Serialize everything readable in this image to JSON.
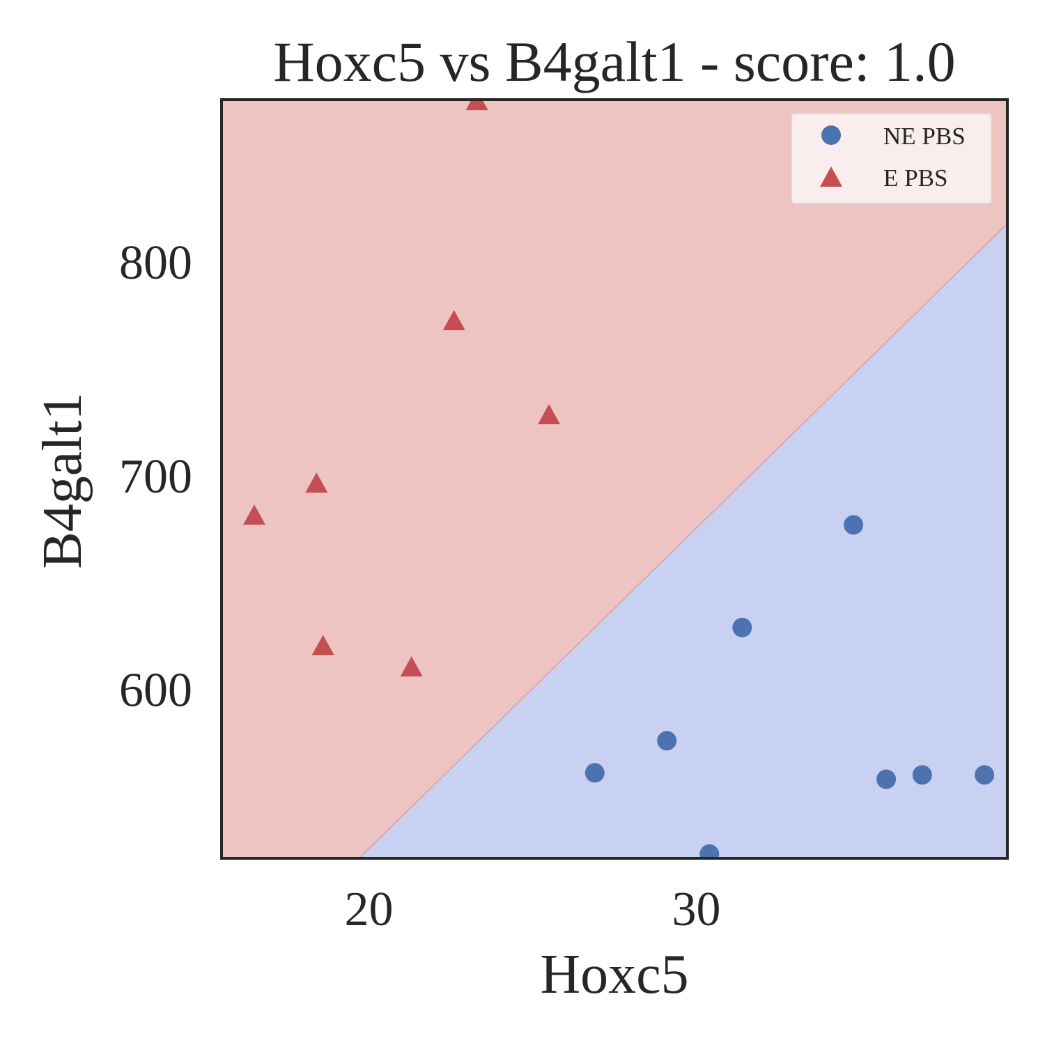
{
  "chart_data": {
    "type": "scatter",
    "title": "Hoxc5 vs B4galt1 - score: 1.0",
    "xlabel": "Hoxc5",
    "ylabel": "B4galt1",
    "xlim": [
      15.5,
      39.5
    ],
    "ylim": [
      521,
      876
    ],
    "xticks": [
      20,
      30
    ],
    "yticks": [
      600,
      700,
      800
    ],
    "grid": false,
    "legend": {
      "position": "upper right"
    },
    "decision_regions": {
      "boundary": [
        [
          19.7,
          521
        ],
        [
          39.5,
          818
        ]
      ],
      "upper_color": "#eec4c3",
      "lower_color": "#c9d1f3",
      "upper_class": "E PBS",
      "lower_class": "NE PBS"
    },
    "series": [
      {
        "name": "NE PBS",
        "marker": "circle",
        "color": "#4c72b0",
        "points": [
          [
            26.9,
            561
          ],
          [
            29.1,
            576
          ],
          [
            30.4,
            523
          ],
          [
            31.4,
            629
          ],
          [
            34.8,
            677
          ],
          [
            35.8,
            558
          ],
          [
            36.9,
            560
          ],
          [
            38.8,
            560
          ]
        ]
      },
      {
        "name": "E PBS",
        "marker": "triangle",
        "color": "#c44e52",
        "points": [
          [
            16.5,
            681
          ],
          [
            18.4,
            696
          ],
          [
            18.6,
            620
          ],
          [
            21.3,
            610
          ],
          [
            22.6,
            772
          ],
          [
            23.3,
            875
          ],
          [
            25.5,
            728
          ]
        ]
      }
    ]
  }
}
